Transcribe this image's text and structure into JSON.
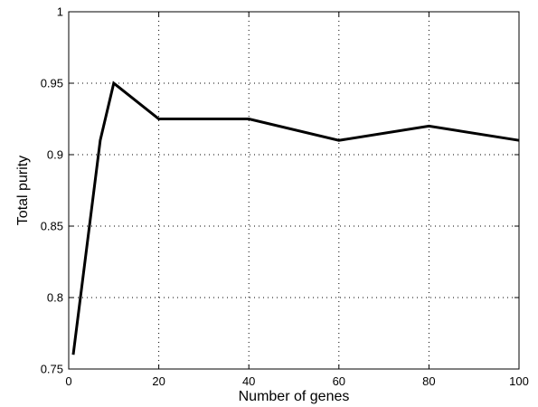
{
  "chart_data": {
    "type": "line",
    "xlabel": "Number of genes",
    "ylabel": "Total purity",
    "xlim": [
      0,
      100
    ],
    "ylim": [
      0.75,
      1
    ],
    "x_ticks": [
      0,
      20,
      40,
      60,
      80,
      100
    ],
    "y_ticks": [
      0.75,
      0.8,
      0.85,
      0.9,
      0.95,
      1
    ],
    "x_tick_labels": [
      "0",
      "20",
      "40",
      "60",
      "80",
      "100"
    ],
    "y_tick_labels": [
      "0.75",
      "0.8",
      "0.85",
      "0.9",
      "0.95",
      "1"
    ],
    "grid": true,
    "series": [
      {
        "x": [
          1,
          7,
          10,
          20,
          40,
          60,
          80,
          100
        ],
        "y": [
          0.76,
          0.91,
          0.95,
          0.925,
          0.925,
          0.91,
          0.92,
          0.91
        ],
        "color": "#000000"
      }
    ]
  }
}
